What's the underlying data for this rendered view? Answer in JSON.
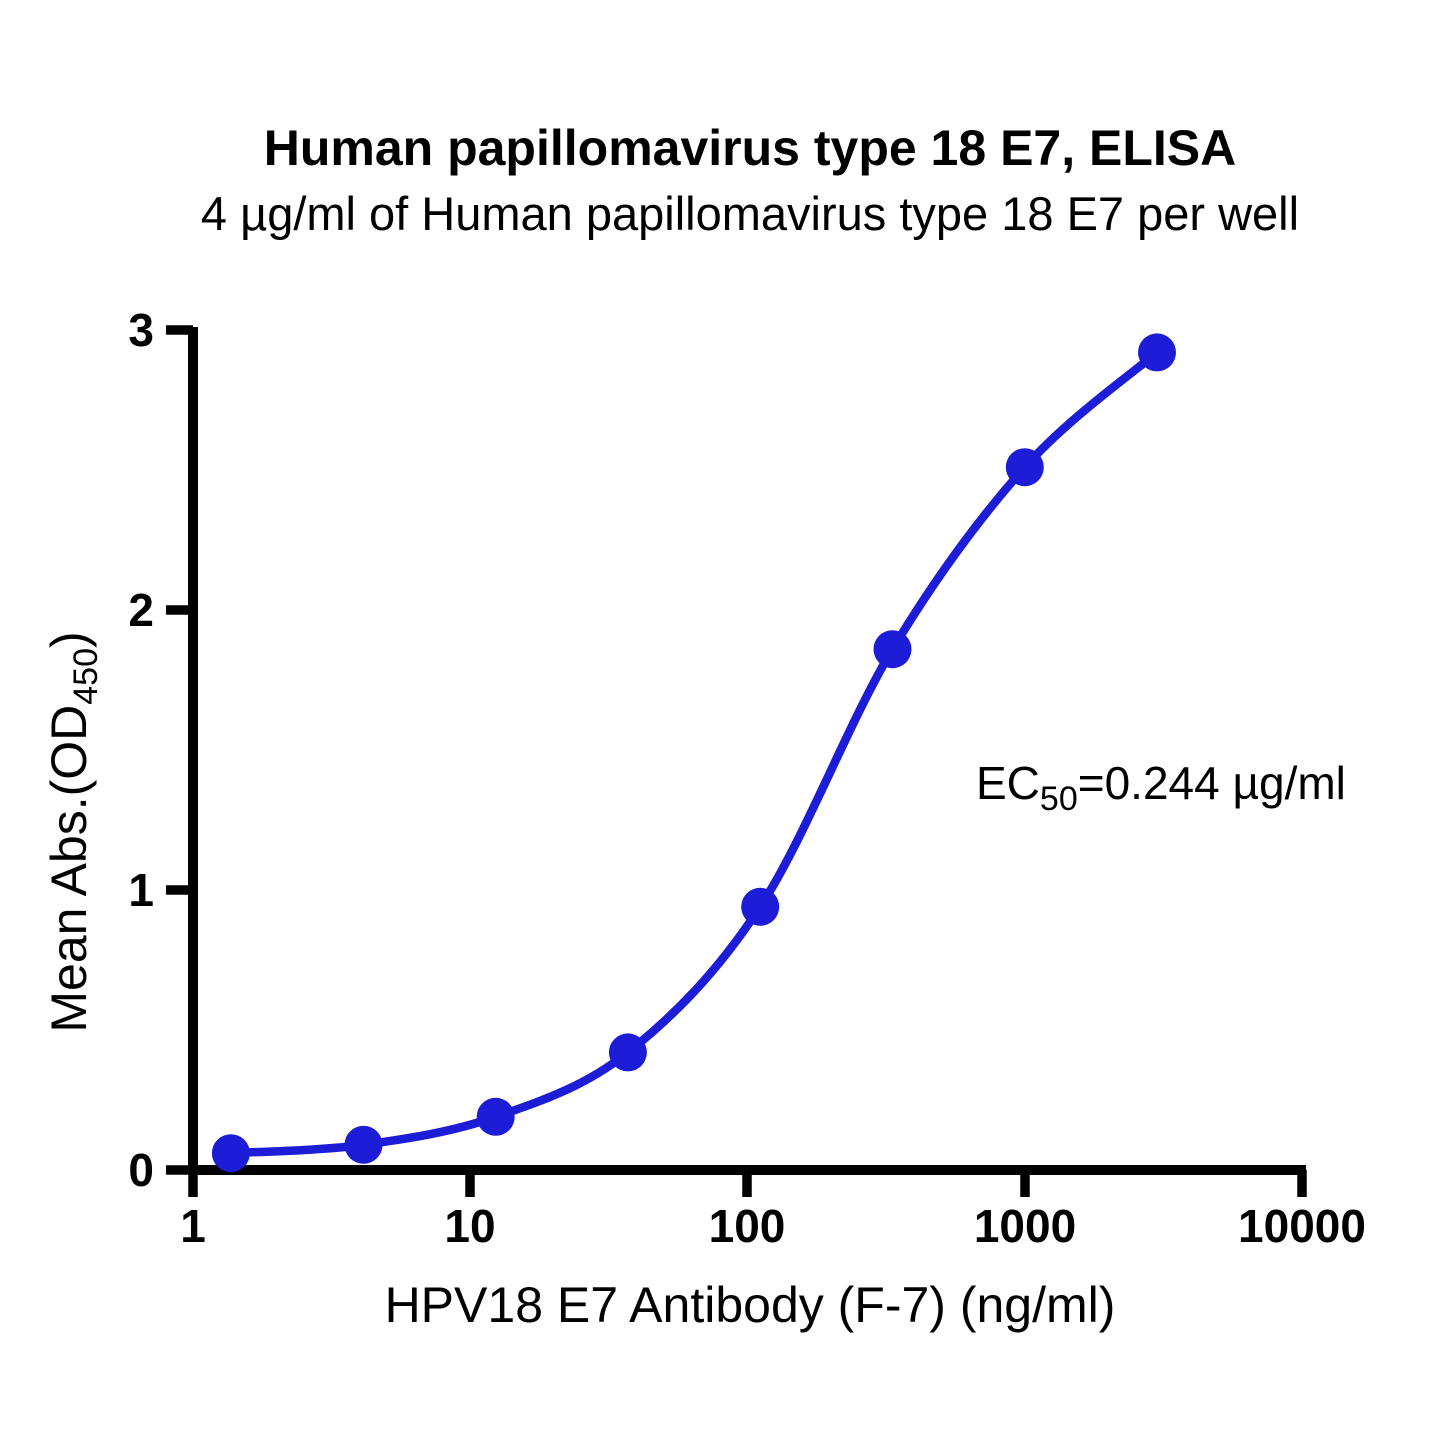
{
  "title": "Human papillomavirus type 18 E7, ELISA",
  "subtitle": "4 µg/ml of Human papillomavirus type 18 E7 per well",
  "annotation": {
    "prefix": "EC",
    "subscript": "50",
    "value": "=0.244 µg/ml"
  },
  "axes": {
    "y_title_main": "Mean Abs.(OD",
    "y_title_sub": "450",
    "y_title_close": ")",
    "x_title": "HPV18 E7 Antibody (F-7) (ng/ml)",
    "x_ticks": [
      "1",
      "10",
      "100",
      "1000",
      "10000"
    ],
    "y_ticks": [
      "0",
      "1",
      "2",
      "3"
    ]
  },
  "colors": {
    "series_blue": "#1d1dd8",
    "axis_black": "#000000"
  },
  "chart_data": {
    "type": "line",
    "title": "Human papillomavirus type 18 E7, ELISA",
    "subtitle": "4 µg/ml of Human papillomavirus type 18 E7 per well",
    "xlabel": "HPV18 E7 Antibody (F-7) (ng/ml)",
    "ylabel": "Mean Abs.(OD450)",
    "x_scale": "log10",
    "xlim": [
      1,
      10000
    ],
    "ylim": [
      0,
      3
    ],
    "x_tick_values": [
      1,
      10,
      100,
      1000,
      10000
    ],
    "y_tick_values": [
      0,
      1,
      2,
      3
    ],
    "grid": false,
    "legend_position": "none",
    "series": [
      {
        "name": "HPV18 E7 Antibody (F-7)",
        "x": [
          1.37,
          4.12,
          12.35,
          37.04,
          111.1,
          333.3,
          1000,
          3000
        ],
        "y": [
          0.06,
          0.09,
          0.19,
          0.42,
          0.94,
          1.86,
          2.51,
          2.92
        ],
        "color": "#1d1dd8",
        "marker": "circle",
        "fit": "4PL sigmoid"
      }
    ],
    "annotations": [
      {
        "text": "EC50=0.244 µg/ml"
      }
    ],
    "ec50_ug_per_ml": 0.244
  }
}
